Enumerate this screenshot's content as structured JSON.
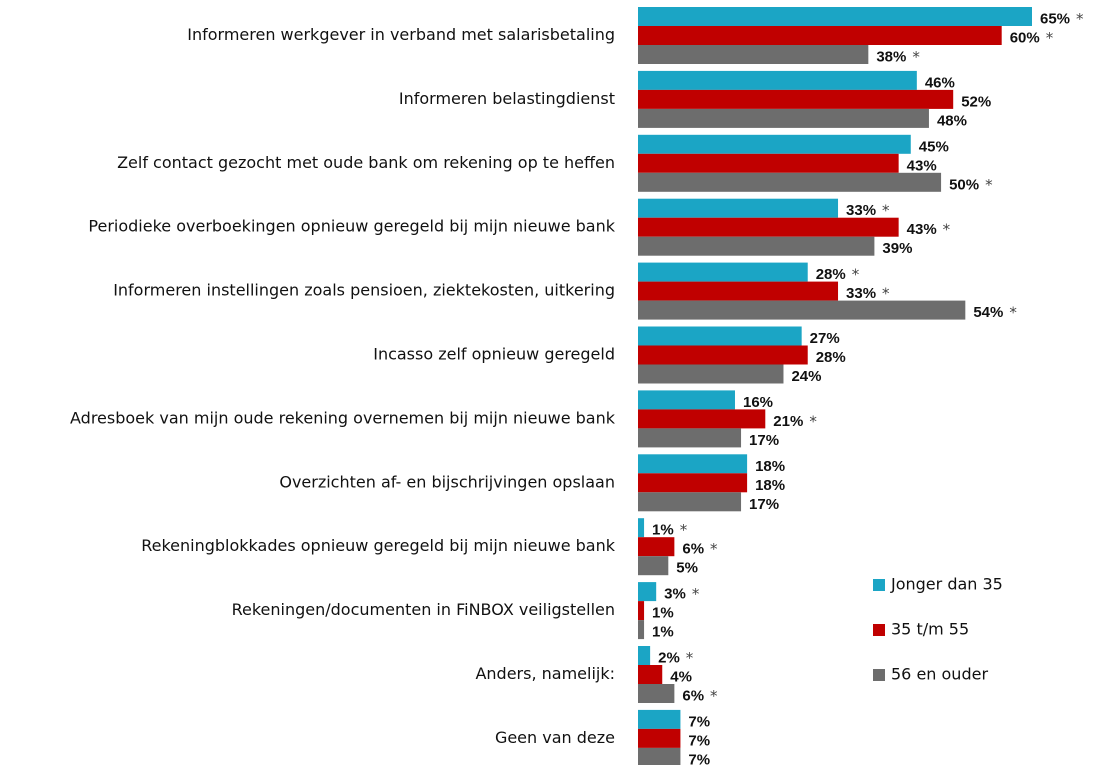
{
  "chart_data": {
    "type": "hbar",
    "categories": [
      "Informeren werkgever in verband met salarisbetaling",
      "Informeren belastingdienst",
      "Zelf contact gezocht met oude bank om rekening op te heffen",
      "Periodieke overboekingen opnieuw geregeld bij mijn nieuwe bank",
      "Informeren instellingen zoals pensioen, ziektekosten, uitkering",
      "Incasso zelf opnieuw geregeld",
      "Adresboek van mijn oude rekening overnemen bij mijn nieuwe bank",
      "Overzichten af- en bijschrijvingen opslaan",
      "Rekeningblokkades opnieuw geregeld bij mijn nieuwe bank",
      "Rekeningen/documenten in FiNBOX veiligstellen",
      "Anders, namelijk:",
      "Geen van deze"
    ],
    "xlim": [
      0,
      65
    ],
    "series": [
      {
        "name": "Jonger dan 35",
        "color": "#1ba5c5",
        "values": [
          65,
          46,
          45,
          33,
          28,
          27,
          16,
          18,
          1,
          3,
          2,
          7
        ],
        "value_labels": [
          "65%",
          "46%",
          "45%",
          "33%",
          "28%",
          "27%",
          "16%",
          "18%",
          "1%",
          "3%",
          "2%",
          "7%"
        ],
        "markers": [
          "*",
          null,
          null,
          "*",
          "*",
          null,
          null,
          null,
          "*",
          "*",
          "*",
          null
        ]
      },
      {
        "name": "35 t/m 55",
        "color": "#c00000",
        "values": [
          60,
          52,
          43,
          43,
          33,
          28,
          21,
          18,
          6,
          1,
          4,
          7
        ],
        "value_labels": [
          "60%",
          "52%",
          "43%",
          "43%",
          "33%",
          "28%",
          "21%",
          "18%",
          "6%",
          "1%",
          "4%",
          "7%"
        ],
        "markers": [
          "*",
          null,
          null,
          "*",
          "*",
          null,
          "*",
          null,
          "*",
          null,
          null,
          null
        ]
      },
      {
        "name": "56 en ouder",
        "color": "#6d6d6d",
        "values": [
          38,
          48,
          50,
          39,
          54,
          24,
          17,
          17,
          5,
          1,
          6,
          7
        ],
        "value_labels": [
          "38%",
          "48%",
          "50%",
          "39%",
          "54%",
          "24%",
          "17%",
          "17%",
          "5%",
          "1%",
          "6%",
          "7%"
        ],
        "markers": [
          "*",
          null,
          "*",
          null,
          "*",
          null,
          null,
          null,
          null,
          null,
          "*",
          null
        ]
      }
    ],
    "legend": "right"
  }
}
